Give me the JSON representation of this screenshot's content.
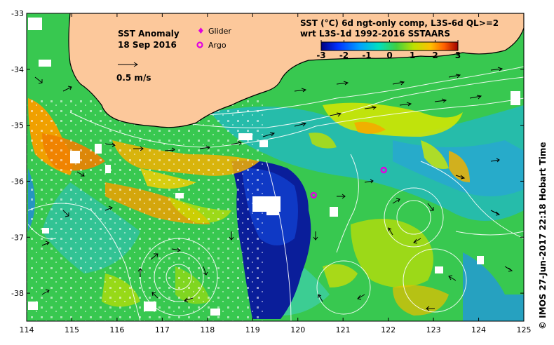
{
  "map": {
    "title": "SST Anomaly",
    "date": "18 Sep 2016",
    "velocity_scale_label": "0.5 m/s",
    "legend": {
      "glider_label": "Glider",
      "argo_label": "Argo",
      "glider_color": "#e000e0",
      "argo_color": "#e000e0"
    },
    "product_line1": "SST (°C) 6d ngt-only comp, L3S-6d QL>=2",
    "product_line2": "wrt L3S-1d 1992-2016 SSTAARS",
    "credit": "©  IMOS 27-Jun-2017 22:18 Hobart Time",
    "colorbar": {
      "min": -3,
      "max": 3,
      "tick_labels": [
        "-3",
        "-2",
        "-1",
        "0",
        "1",
        "2",
        "3"
      ],
      "colors": [
        "#000080",
        "#0030ff",
        "#00a0ff",
        "#00e0c0",
        "#40d040",
        "#c0e000",
        "#ffc000",
        "#ff6000",
        "#a00000"
      ]
    },
    "x_axis": {
      "min": 114,
      "max": 125,
      "tick_labels": [
        "114",
        "115",
        "116",
        "117",
        "118",
        "119",
        "120",
        "121",
        "122",
        "123",
        "124",
        "125"
      ]
    },
    "y_axis": {
      "min": -38.5,
      "max": -33,
      "tick_labels": [
        "-33",
        "-34",
        "-35",
        "-36",
        "-37",
        "-38"
      ]
    },
    "land_color": "#fcc89b",
    "ocean_base_color": "#38c850",
    "markers": [
      {
        "type": "argo",
        "lon": 121.9,
        "lat": -35.8
      },
      {
        "type": "argo",
        "lon": 120.35,
        "lat": -36.25
      }
    ]
  }
}
